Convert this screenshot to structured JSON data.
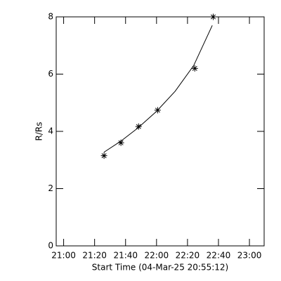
{
  "chart_data": {
    "type": "scatter",
    "xlabel": "Start Time (04-Mar-25 20:55:12)",
    "ylabel": "R/Rs",
    "xlim": [
      1255.2,
      1389.5
    ],
    "xticks": [
      {
        "value": 1260,
        "label": "21:00"
      },
      {
        "value": 1280,
        "label": "21:20"
      },
      {
        "value": 1300,
        "label": "21:40"
      },
      {
        "value": 1320,
        "label": "22:00"
      },
      {
        "value": 1340,
        "label": "22:20"
      },
      {
        "value": 1360,
        "label": "22:40"
      },
      {
        "value": 1380,
        "label": "23:00"
      }
    ],
    "ylim": [
      0,
      8
    ],
    "yticks": [
      0,
      2,
      4,
      6,
      8
    ],
    "color": "#000000",
    "series": [
      {
        "kind": "markers",
        "x": [
          1286.1,
          1297.0,
          1308.4,
          1320.7,
          1344.7,
          1356.6
        ],
        "values": [
          3.15,
          3.6,
          4.17,
          4.74,
          6.2,
          8.0
        ]
      },
      {
        "kind": "line",
        "x": [
          1286,
          1297,
          1308,
          1320,
          1332,
          1344,
          1356
        ],
        "values": [
          3.27,
          3.66,
          4.12,
          4.7,
          5.4,
          6.3,
          7.7
        ]
      }
    ]
  }
}
